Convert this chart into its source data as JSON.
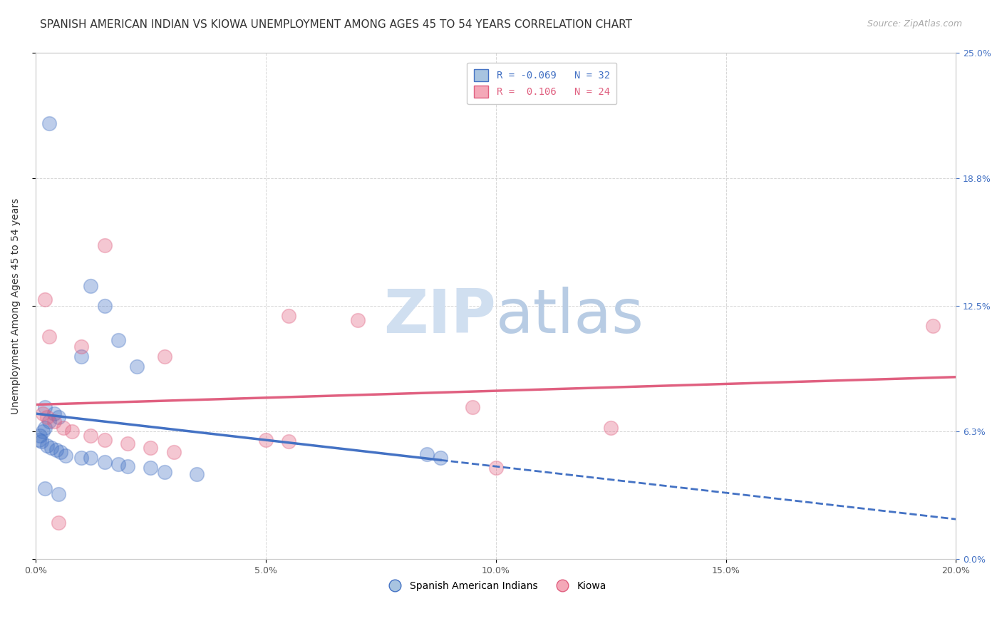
{
  "title": "SPANISH AMERICAN INDIAN VS KIOWA UNEMPLOYMENT AMONG AGES 45 TO 54 YEARS CORRELATION CHART",
  "source": "Source: ZipAtlas.com",
  "ylabel": "Unemployment Among Ages 45 to 54 years",
  "xlabel_ticks": [
    "0.0%",
    "5.0%",
    "10.0%",
    "15.0%",
    "20.0%"
  ],
  "xlabel_vals": [
    0.0,
    5.0,
    10.0,
    15.0,
    20.0
  ],
  "ylabel_ticks": [
    "0.0%",
    "6.3%",
    "12.5%",
    "18.8%",
    "25.0%"
  ],
  "ylabel_vals": [
    0.0,
    6.3,
    12.5,
    18.8,
    25.0
  ],
  "xlim": [
    0.0,
    20.0
  ],
  "ylim": [
    0.0,
    25.0
  ],
  "legend_labels": [
    "Spanish American Indians",
    "Kiowa"
  ],
  "R_blue": -0.069,
  "N_blue": 32,
  "R_pink": 0.106,
  "N_pink": 24,
  "blue_scatter": [
    [
      0.3,
      21.5
    ],
    [
      1.2,
      13.5
    ],
    [
      1.5,
      12.5
    ],
    [
      1.8,
      10.8
    ],
    [
      1.0,
      10.0
    ],
    [
      2.2,
      9.5
    ],
    [
      0.2,
      7.5
    ],
    [
      0.4,
      7.2
    ],
    [
      0.5,
      7.0
    ],
    [
      0.3,
      6.8
    ],
    [
      0.2,
      6.5
    ],
    [
      0.15,
      6.3
    ],
    [
      0.1,
      6.1
    ],
    [
      0.08,
      5.9
    ],
    [
      0.12,
      5.8
    ],
    [
      0.25,
      5.6
    ],
    [
      0.35,
      5.5
    ],
    [
      0.45,
      5.4
    ],
    [
      0.55,
      5.3
    ],
    [
      0.65,
      5.1
    ],
    [
      1.0,
      5.0
    ],
    [
      1.2,
      5.0
    ],
    [
      1.5,
      4.8
    ],
    [
      1.8,
      4.7
    ],
    [
      2.0,
      4.6
    ],
    [
      2.5,
      4.5
    ],
    [
      2.8,
      4.3
    ],
    [
      3.5,
      4.2
    ],
    [
      0.2,
      3.5
    ],
    [
      0.5,
      3.2
    ],
    [
      8.5,
      5.2
    ],
    [
      8.8,
      5.0
    ]
  ],
  "pink_scatter": [
    [
      0.2,
      12.8
    ],
    [
      1.5,
      15.5
    ],
    [
      0.3,
      11.0
    ],
    [
      1.0,
      10.5
    ],
    [
      2.8,
      10.0
    ],
    [
      5.5,
      12.0
    ],
    [
      7.0,
      11.8
    ],
    [
      0.15,
      7.2
    ],
    [
      0.25,
      7.0
    ],
    [
      0.4,
      6.8
    ],
    [
      0.6,
      6.5
    ],
    [
      0.8,
      6.3
    ],
    [
      1.2,
      6.1
    ],
    [
      1.5,
      5.9
    ],
    [
      2.0,
      5.7
    ],
    [
      2.5,
      5.5
    ],
    [
      3.0,
      5.3
    ],
    [
      5.0,
      5.9
    ],
    [
      5.5,
      5.8
    ],
    [
      9.5,
      7.5
    ],
    [
      12.5,
      6.5
    ],
    [
      10.0,
      4.5
    ],
    [
      19.5,
      11.5
    ],
    [
      0.5,
      1.8
    ]
  ],
  "background_color": "#ffffff",
  "grid_color": "#cccccc",
  "blue_line_color": "#4472c4",
  "pink_line_color": "#e06080",
  "blue_fill_color": "#a8c4e0",
  "pink_fill_color": "#f4a8b8",
  "title_fontsize": 11,
  "axis_label_fontsize": 10,
  "tick_fontsize": 9,
  "legend_fontsize": 10,
  "source_fontsize": 9
}
